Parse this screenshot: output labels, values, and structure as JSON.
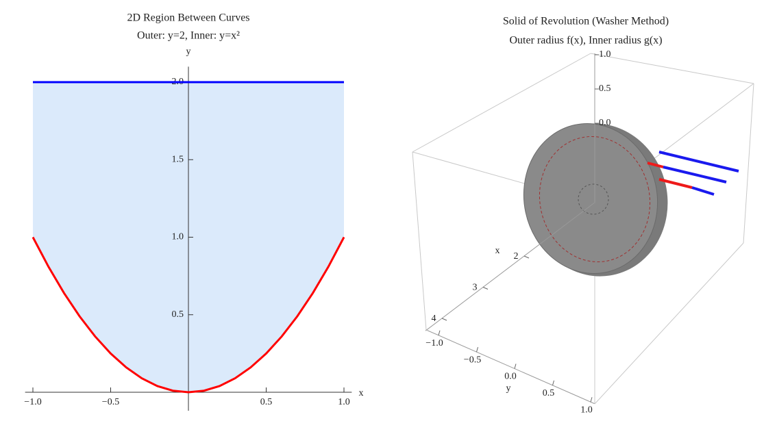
{
  "chart_data": [
    {
      "type": "area_between",
      "title": "2D Region Between Curves",
      "subtitle": "Outer: y=2, Inner: y=x²",
      "x_label": "x",
      "y_label": "y",
      "x": [
        -1,
        -0.9,
        -0.8,
        -0.7,
        -0.6,
        -0.5,
        -0.4,
        -0.3,
        -0.2,
        -0.1,
        0,
        0.1,
        0.2,
        0.3,
        0.4,
        0.5,
        0.6,
        0.7,
        0.8,
        0.9,
        1
      ],
      "series": [
        {
          "color": "#0000ff",
          "values": [
            2,
            2,
            2,
            2,
            2,
            2,
            2,
            2,
            2,
            2,
            2,
            2,
            2,
            2,
            2,
            2,
            2,
            2,
            2,
            2,
            2
          ]
        },
        {
          "color": "#ff0000",
          "values": [
            1,
            0.81,
            0.64,
            0.49,
            0.36,
            0.25,
            0.16,
            0.09,
            0.04,
            0.01,
            0,
            0.01,
            0.04,
            0.09,
            0.16,
            0.25,
            0.36,
            0.49,
            0.64,
            0.81,
            1
          ]
        }
      ],
      "fill_color": "#dbeafb",
      "xlim": [
        -1.05,
        1.05
      ],
      "ylim": [
        0,
        2.1
      ],
      "xticks": [
        {
          "value": -1,
          "label": "−1.0"
        },
        {
          "value": -0.5,
          "label": "−0.5"
        },
        0.5,
        {
          "value": 1,
          "label": "1.0"
        }
      ],
      "yticks": [
        0.5,
        {
          "value": 1,
          "label": "1.0"
        },
        1.5,
        {
          "value": 2,
          "label": "2.0"
        }
      ]
    },
    {
      "type": "surface3d",
      "title": "Solid of Revolution (Washer Method)",
      "subtitle": "Outer radius f(x), Inner radius g(x)",
      "x_label": "x",
      "y_label": "y",
      "xlim": [
        0.3,
        4.4
      ],
      "ylim": [
        -1.15,
        1.05
      ],
      "zlim": [
        -1.17,
        1.02
      ],
      "xticks": [
        2,
        3,
        4
      ],
      "yticks": [
        {
          "value": -1,
          "label": "−1.0"
        },
        {
          "value": -0.5,
          "label": "−0.5"
        },
        {
          "value": 0,
          "label": "0.0"
        },
        0.5,
        {
          "value": 1,
          "label": "1.0"
        }
      ],
      "zticks": [
        {
          "value": 0,
          "label": "0.0"
        },
        0.5,
        {
          "value": 1,
          "label": "1.0"
        }
      ]
    }
  ]
}
